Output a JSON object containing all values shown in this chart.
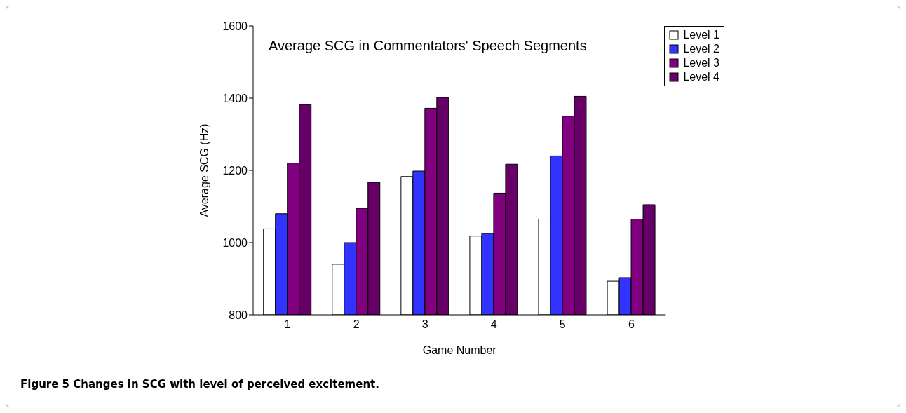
{
  "chart_data": {
    "type": "bar",
    "title": "Average SCG in Commentators' Speech Segments",
    "xlabel": "Game Number",
    "ylabel": "Average SCG (Hz)",
    "annotations": [
      "Figure 5 Changes in SCG with level of perceived excitement."
    ],
    "categories": [
      "1",
      "2",
      "3",
      "4",
      "5",
      "6"
    ],
    "series": [
      {
        "name": "Level 1",
        "color": "#ffffff",
        "values": [
          1038,
          940,
          1183,
          1018,
          1065,
          893
        ]
      },
      {
        "name": "Level 2",
        "color": "#3333ff",
        "values": [
          1080,
          1000,
          1198,
          1025,
          1240,
          903
        ]
      },
      {
        "name": "Level 3",
        "color": "#800080",
        "values": [
          1220,
          1095,
          1372,
          1137,
          1350,
          1065
        ]
      },
      {
        "name": "Level 4",
        "color": "#660066",
        "values": [
          1382,
          1167,
          1402,
          1217,
          1405,
          1105
        ]
      }
    ],
    "ylim": [
      800,
      1600
    ],
    "yticks": [
      800,
      1000,
      1200,
      1400,
      1600
    ],
    "grid": false,
    "legend": "top right"
  }
}
